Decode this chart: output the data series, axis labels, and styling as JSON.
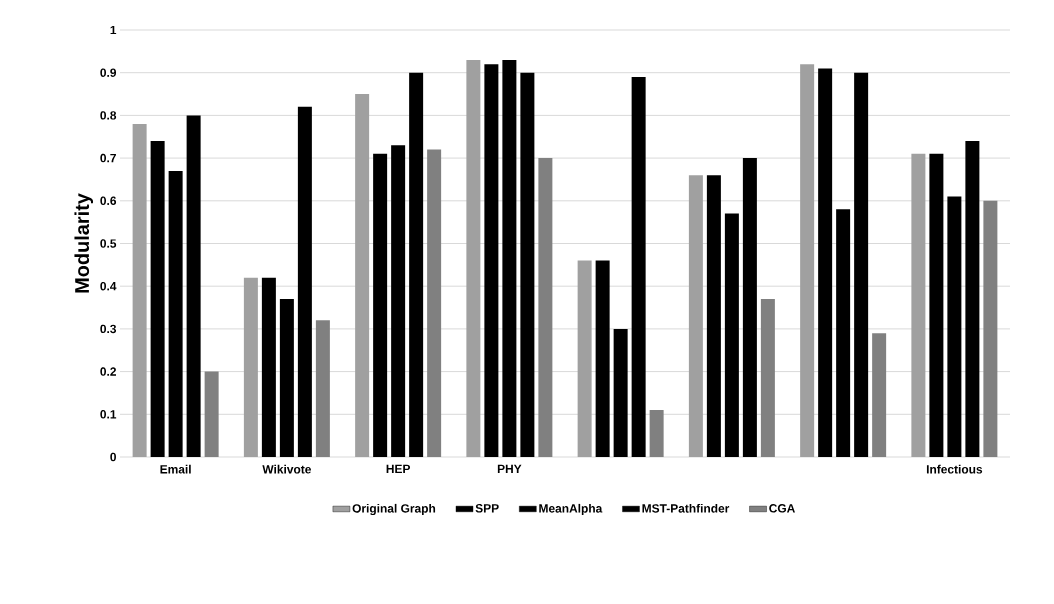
{
  "chart_data": {
    "type": "bar",
    "ylabel": "Modularity",
    "categories": [
      "Email",
      "Wikivote",
      "HEP",
      "PHY",
      null,
      null,
      null,
      "Infectious"
    ],
    "series": [
      {
        "name": "Original Graph",
        "color": "#a0a0a0",
        "values": [
          0.78,
          0.42,
          0.85,
          0.93,
          0.46,
          0.66,
          0.92,
          0.71
        ]
      },
      {
        "name": "SPP",
        "color": "#000000",
        "values": [
          0.74,
          0.42,
          0.71,
          0.92,
          0.46,
          0.66,
          0.91,
          0.71
        ]
      },
      {
        "name": "MeanAlpha",
        "color": "#000000",
        "values": [
          0.67,
          0.37,
          0.73,
          0.93,
          0.3,
          0.57,
          0.58,
          0.61
        ]
      },
      {
        "name": "MST-Pathfinder",
        "color": "#000000",
        "values": [
          0.8,
          0.82,
          0.9,
          0.9,
          0.89,
          0.7,
          0.9,
          0.74
        ]
      },
      {
        "name": "CGA",
        "color": "#808080",
        "values": [
          0.2,
          0.32,
          0.72,
          0.7,
          0.11,
          0.37,
          0.29,
          0.6
        ]
      }
    ],
    "ylim": [
      0,
      1
    ],
    "yticks": [
      0,
      0.1,
      0.2,
      0.3,
      0.4,
      0.5,
      0.6,
      0.7,
      0.8,
      0.9,
      1
    ],
    "grid": "y",
    "legend": "bottom"
  }
}
